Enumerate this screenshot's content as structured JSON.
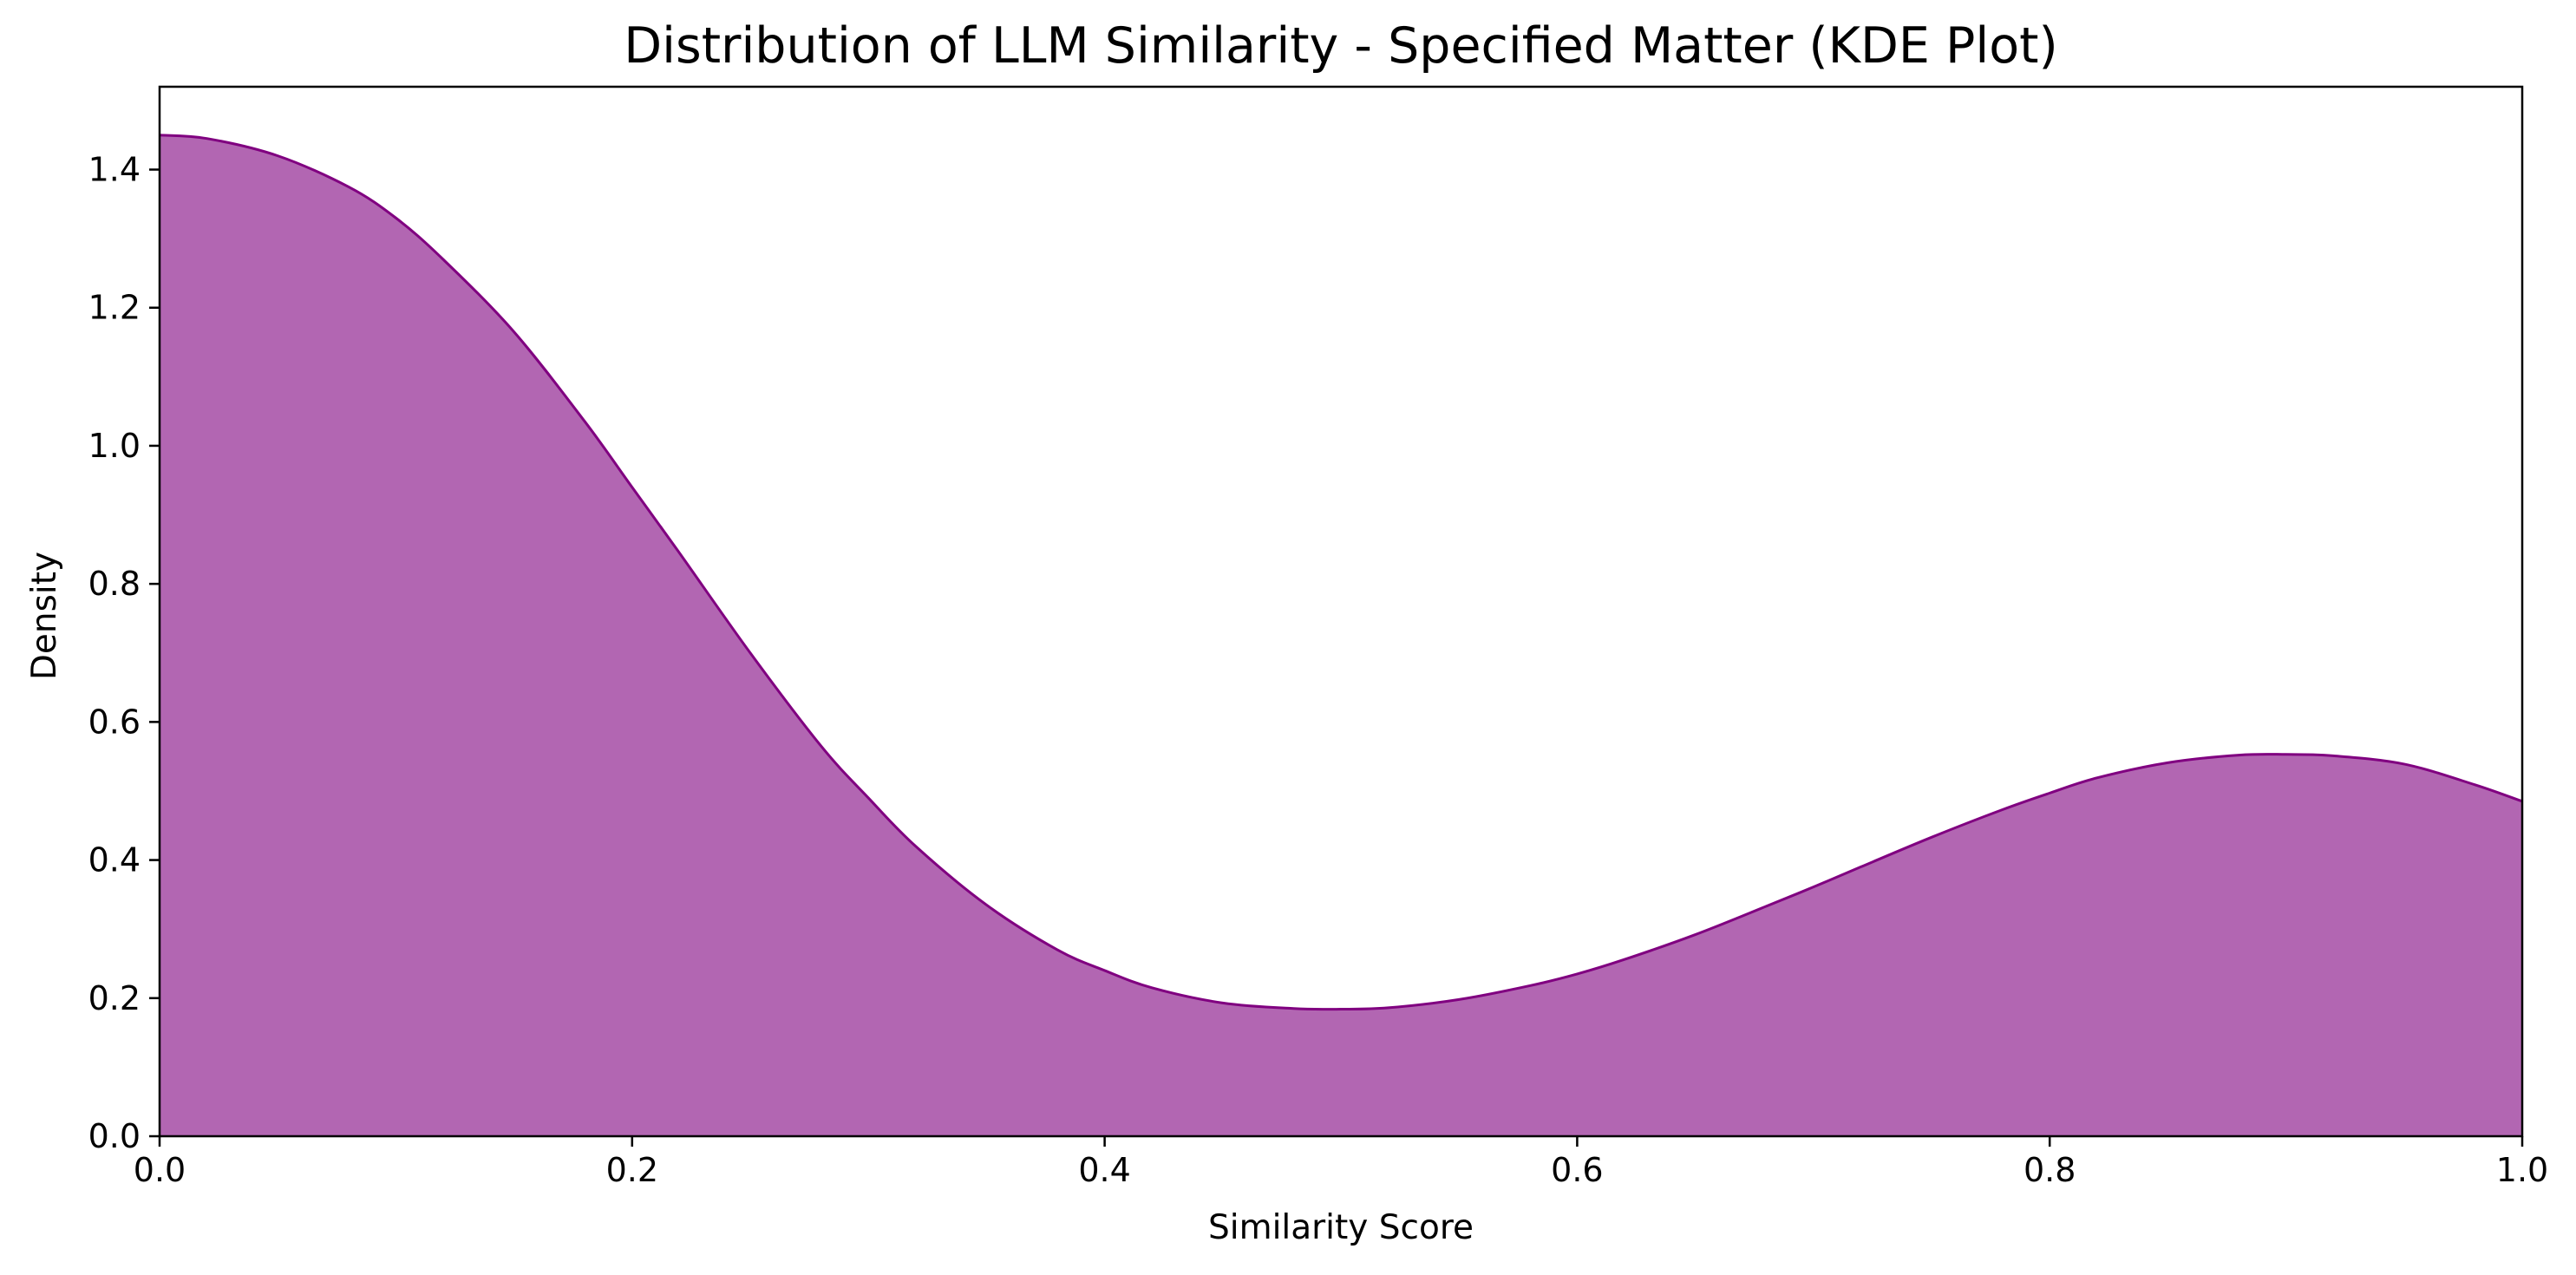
{
  "chart_data": {
    "type": "area",
    "title": "Distribution of LLM Similarity - Specified Matter (KDE Plot)",
    "xlabel": "Similarity Score",
    "ylabel": "Density",
    "xlim": [
      0.0,
      1.0
    ],
    "ylim": [
      0.0,
      1.52
    ],
    "xticks": [
      0.0,
      0.2,
      0.4,
      0.6,
      0.8,
      1.0
    ],
    "xtick_labels": [
      "0.0",
      "0.2",
      "0.4",
      "0.6",
      "0.8",
      "1.0"
    ],
    "yticks": [
      0.0,
      0.2,
      0.4,
      0.6,
      0.8,
      1.0,
      1.2,
      1.4
    ],
    "ytick_labels": [
      "0.0",
      "0.2",
      "0.4",
      "0.6",
      "0.8",
      "1.0",
      "1.2",
      "1.4"
    ],
    "grid": false,
    "legend": "none",
    "series": [
      {
        "color": "#800080",
        "fill_color": "#b266b2",
        "x": [
          0.0,
          0.02,
          0.05,
          0.08,
          0.1,
          0.12,
          0.15,
          0.18,
          0.2,
          0.22,
          0.25,
          0.28,
          0.3,
          0.32,
          0.35,
          0.38,
          0.4,
          0.42,
          0.45,
          0.48,
          0.5,
          0.52,
          0.55,
          0.58,
          0.6,
          0.62,
          0.65,
          0.68,
          0.7,
          0.72,
          0.75,
          0.78,
          0.8,
          0.82,
          0.85,
          0.88,
          0.9,
          0.92,
          0.95,
          0.98,
          1.0
        ],
        "y": [
          1.45,
          1.445,
          1.42,
          1.375,
          1.33,
          1.27,
          1.165,
          1.035,
          0.94,
          0.845,
          0.7,
          0.565,
          0.49,
          0.42,
          0.335,
          0.27,
          0.24,
          0.215,
          0.193,
          0.185,
          0.184,
          0.186,
          0.198,
          0.218,
          0.235,
          0.256,
          0.292,
          0.333,
          0.361,
          0.39,
          0.433,
          0.473,
          0.497,
          0.519,
          0.541,
          0.552,
          0.553,
          0.551,
          0.539,
          0.509,
          0.485
        ]
      }
    ]
  }
}
